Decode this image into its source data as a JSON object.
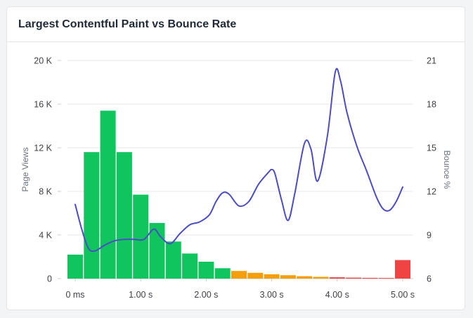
{
  "card": {
    "title": "Largest Contentful Paint vs Bounce Rate"
  },
  "chart_data": {
    "type": "bar",
    "title": "Largest Contentful Paint vs Bounce Rate",
    "xlabel": "",
    "ylabel": "Page Views",
    "y2label": "Bounce %",
    "x_tick_labels": [
      "0 ms",
      "1.00 s",
      "2.00 s",
      "3.00 s",
      "4.00 s",
      "5.00 s"
    ],
    "y_tick_labels": [
      "0",
      "4 K",
      "8 K",
      "12 K",
      "16 K",
      "20 K"
    ],
    "y2_tick_labels": [
      "6",
      "9",
      "12",
      "15",
      "18",
      "21"
    ],
    "ylim": [
      0,
      20000
    ],
    "y2lim": [
      6,
      21
    ],
    "xlim": [
      0,
      5
    ],
    "grid": true,
    "colors": {
      "good": "#10c45e",
      "needs_improvement": "#f59e0b",
      "poor": "#ef4444",
      "line": "#4c4cc4"
    },
    "series": [
      {
        "name": "Page Views",
        "type": "bar",
        "x": [
          0,
          0.25,
          0.5,
          0.75,
          1.0,
          1.25,
          1.5,
          1.75,
          2.0,
          2.25,
          2.5,
          2.75,
          3.0,
          3.25,
          3.5,
          3.75,
          4.0,
          4.25,
          4.5,
          4.75,
          5.0
        ],
        "values": [
          2200,
          11600,
          15400,
          11600,
          7700,
          5100,
          3400,
          2300,
          1550,
          950,
          700,
          530,
          400,
          310,
          220,
          160,
          120,
          90,
          70,
          60,
          1700
        ],
        "rating": [
          "good",
          "good",
          "good",
          "good",
          "good",
          "good",
          "good",
          "good",
          "good",
          "good",
          "needs_improvement",
          "needs_improvement",
          "needs_improvement",
          "needs_improvement",
          "needs_improvement",
          "needs_improvement",
          "poor",
          "poor",
          "poor",
          "poor",
          "poor"
        ]
      },
      {
        "name": "Bounce %",
        "type": "line",
        "axis": "right",
        "x": [
          0,
          0.1,
          0.2,
          0.3,
          0.45,
          0.6,
          0.75,
          0.9,
          1.05,
          1.2,
          1.3,
          1.45,
          1.6,
          1.75,
          1.9,
          2.05,
          2.15,
          2.25,
          2.35,
          2.5,
          2.65,
          2.8,
          2.95,
          3.0,
          3.05,
          3.15,
          3.25,
          3.35,
          3.5,
          3.6,
          3.7,
          3.85,
          3.97,
          4.05,
          4.15,
          4.3,
          4.45,
          4.6,
          4.7,
          4.8,
          4.9,
          5.0
        ],
        "values": [
          11.1,
          9.4,
          8.1,
          7.9,
          8.3,
          8.6,
          8.7,
          8.7,
          8.7,
          9.4,
          8.9,
          8.4,
          9.1,
          9.7,
          9.9,
          10.4,
          11.3,
          11.9,
          11.8,
          11.0,
          11.3,
          12.5,
          13.3,
          13.5,
          13.2,
          11.4,
          10.0,
          11.8,
          15.3,
          14.9,
          12.7,
          15.8,
          20.2,
          19.6,
          17.4,
          15.1,
          13.4,
          11.6,
          10.8,
          10.7,
          11.3,
          12.3
        ]
      }
    ]
  }
}
